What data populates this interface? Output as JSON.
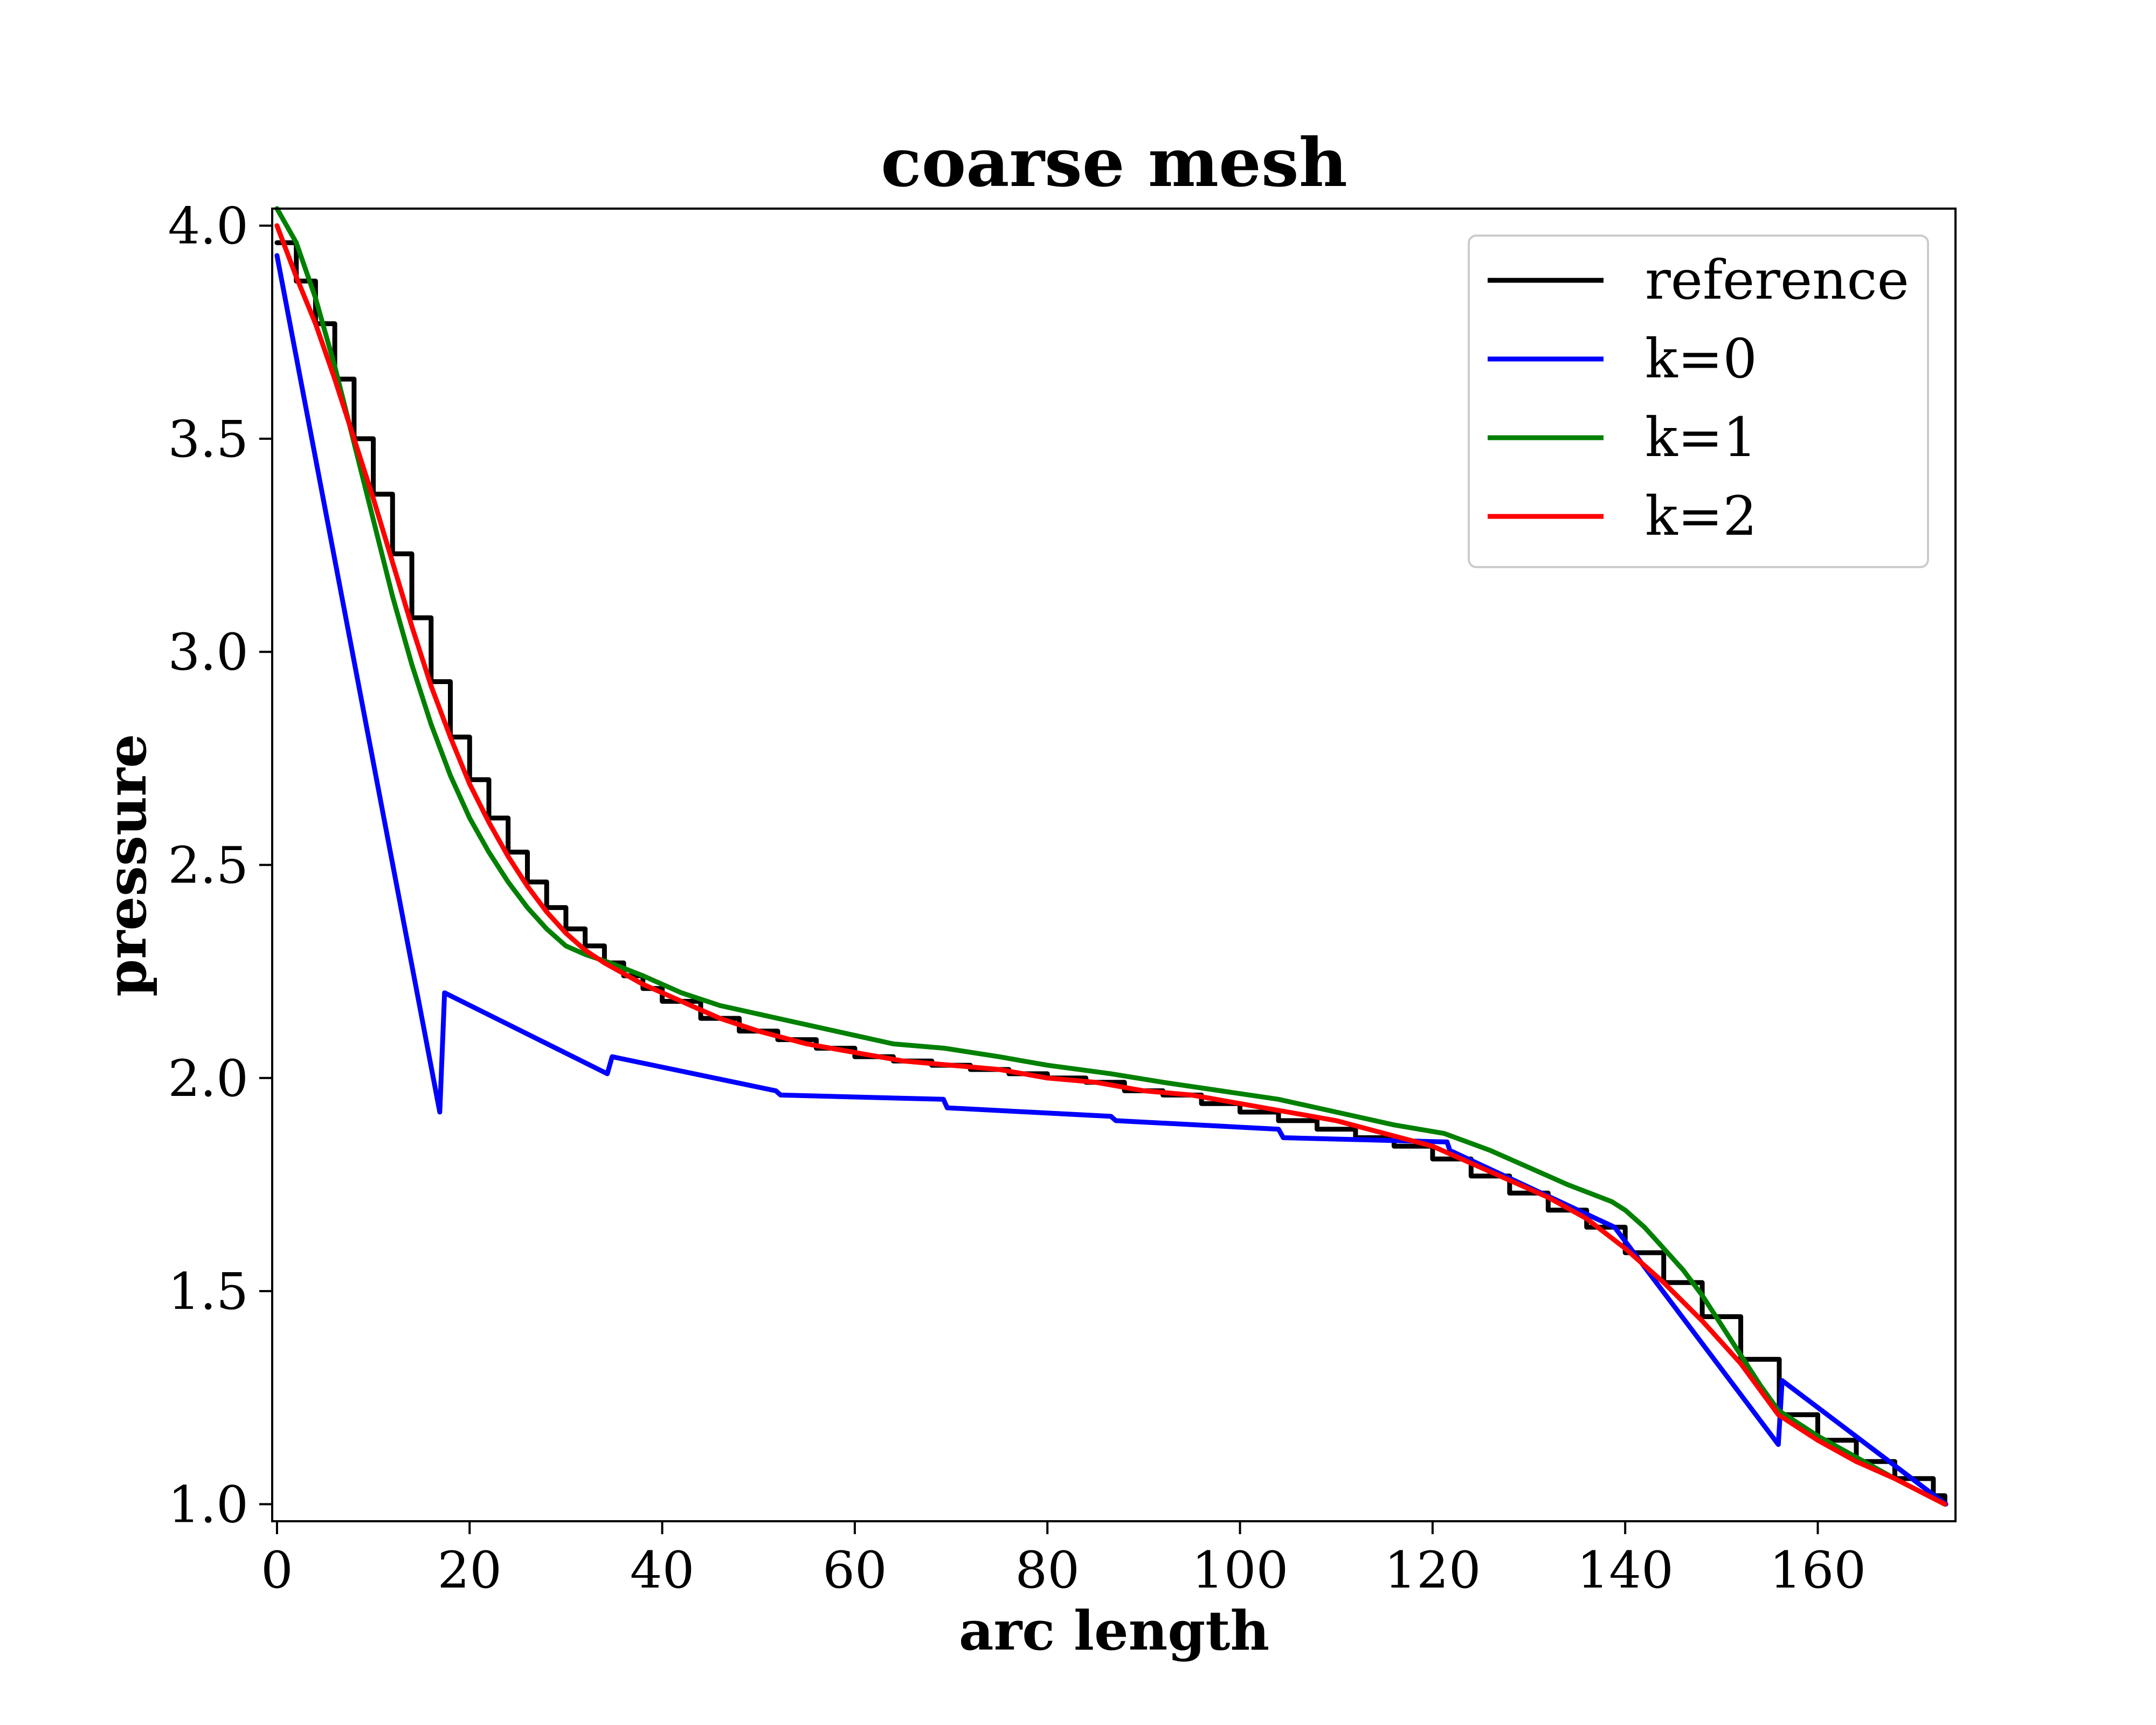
{
  "chart_data": {
    "type": "line",
    "title": "coarse mesh",
    "xlabel": "arc length",
    "ylabel": "pressure",
    "xlim": [
      -0.5,
      174.3
    ],
    "ylim": [
      0.96,
      4.04
    ],
    "xticks": [
      0,
      20,
      40,
      60,
      80,
      100,
      120,
      140,
      160
    ],
    "yticks": [
      1.0,
      1.5,
      2.0,
      2.5,
      3.0,
      3.5,
      4.0
    ],
    "xtick_labels": [
      "0",
      "20",
      "40",
      "60",
      "80",
      "100",
      "120",
      "140",
      "160"
    ],
    "ytick_labels": [
      "1.0",
      "1.5",
      "2.0",
      "2.5",
      "3.0",
      "3.5",
      "4.0"
    ],
    "grid": false,
    "legend_position": "top-right",
    "series": [
      {
        "name": "reference",
        "color": "#000000",
        "style": "step",
        "x": [
          0,
          2,
          4,
          6,
          8,
          10,
          12,
          14,
          16,
          18,
          20,
          22,
          24,
          26,
          28,
          30,
          32,
          34,
          36,
          38,
          40,
          44,
          48,
          52,
          56,
          60,
          64,
          68,
          72,
          76,
          80,
          84,
          88,
          92,
          96,
          100,
          104,
          108,
          112,
          116,
          120,
          124,
          128,
          132,
          136,
          140,
          144,
          148,
          152,
          156,
          160,
          164,
          168,
          172,
          173.2
        ],
        "y": [
          3.96,
          3.87,
          3.77,
          3.64,
          3.5,
          3.37,
          3.23,
          3.08,
          2.93,
          2.8,
          2.7,
          2.61,
          2.53,
          2.46,
          2.4,
          2.35,
          2.31,
          2.27,
          2.24,
          2.21,
          2.18,
          2.14,
          2.11,
          2.09,
          2.07,
          2.05,
          2.04,
          2.03,
          2.02,
          2.01,
          2.0,
          1.99,
          1.97,
          1.96,
          1.94,
          1.92,
          1.9,
          1.88,
          1.86,
          1.84,
          1.81,
          1.77,
          1.73,
          1.69,
          1.65,
          1.59,
          1.52,
          1.44,
          1.34,
          1.21,
          1.15,
          1.1,
          1.06,
          1.02,
          1.0
        ]
      },
      {
        "name": "k=0",
        "color": "#0000ff",
        "style": "line",
        "x": [
          0,
          16.9,
          17.4,
          34.3,
          34.8,
          51.8,
          52.3,
          69.2,
          69.6,
          86.6,
          87.1,
          104.0,
          104.5,
          121.5,
          121.8,
          138.9,
          155.9,
          156.3,
          173.3
        ],
        "y": [
          3.93,
          1.92,
          2.2,
          2.01,
          2.05,
          1.97,
          1.96,
          1.95,
          1.93,
          1.91,
          1.9,
          1.88,
          1.86,
          1.85,
          1.83,
          1.65,
          1.14,
          1.29,
          1.0
        ]
      },
      {
        "name": "k=1",
        "color": "#008000",
        "style": "line",
        "x": [
          0,
          2,
          4,
          6,
          8,
          10,
          12,
          14,
          16,
          18,
          20,
          22,
          24,
          26,
          28,
          30,
          32,
          34.6,
          38,
          42,
          46,
          50,
          52,
          56,
          60,
          64,
          69.3,
          75,
          80,
          86.6,
          92,
          98,
          104,
          108,
          112,
          116,
          121.2,
          126,
          130,
          134,
          138.6,
          140,
          142,
          144,
          146,
          148,
          150,
          152,
          154,
          155.9,
          160,
          164,
          168,
          173.2
        ],
        "y": [
          4.04,
          3.96,
          3.83,
          3.67,
          3.49,
          3.31,
          3.13,
          2.97,
          2.83,
          2.71,
          2.61,
          2.53,
          2.46,
          2.4,
          2.35,
          2.31,
          2.29,
          2.27,
          2.24,
          2.2,
          2.17,
          2.15,
          2.14,
          2.12,
          2.1,
          2.08,
          2.07,
          2.05,
          2.03,
          2.01,
          1.99,
          1.97,
          1.95,
          1.93,
          1.91,
          1.89,
          1.87,
          1.83,
          1.79,
          1.75,
          1.71,
          1.69,
          1.65,
          1.6,
          1.55,
          1.49,
          1.42,
          1.35,
          1.28,
          1.22,
          1.16,
          1.11,
          1.06,
          1.0
        ]
      },
      {
        "name": "k=2",
        "color": "#ff0000",
        "style": "line",
        "x": [
          0,
          2,
          4,
          6,
          8,
          10,
          12,
          14,
          16,
          18,
          20,
          22,
          24,
          26,
          28,
          30,
          32,
          34,
          38,
          42,
          46,
          50,
          55,
          60,
          65,
          70,
          75,
          80,
          85,
          90,
          95,
          100,
          105,
          110,
          115,
          120,
          124,
          128,
          132,
          136,
          140,
          144,
          148,
          152,
          155.9,
          160,
          164,
          168,
          173.2
        ],
        "y": [
          4.0,
          3.88,
          3.77,
          3.64,
          3.5,
          3.36,
          3.21,
          3.06,
          2.92,
          2.8,
          2.69,
          2.6,
          2.52,
          2.45,
          2.39,
          2.34,
          2.3,
          2.27,
          2.22,
          2.18,
          2.14,
          2.11,
          2.08,
          2.06,
          2.04,
          2.03,
          2.02,
          2.0,
          1.99,
          1.97,
          1.96,
          1.94,
          1.92,
          1.9,
          1.87,
          1.84,
          1.8,
          1.76,
          1.72,
          1.67,
          1.6,
          1.52,
          1.43,
          1.33,
          1.21,
          1.15,
          1.1,
          1.06,
          1.0
        ]
      }
    ]
  }
}
